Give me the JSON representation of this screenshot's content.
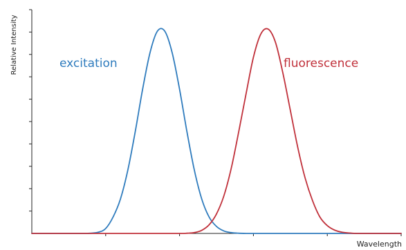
{
  "chart_data": {
    "type": "line",
    "title": "",
    "xlabel": "Wavelength",
    "ylabel": "Relative Intensity",
    "xlim": [
      0,
      100
    ],
    "ylim": [
      0,
      1.0
    ],
    "grid": false,
    "legend": "none",
    "series": [
      {
        "name": "excitation",
        "color": "#2e7bbd",
        "x": [
          0,
          10,
          15,
          18,
          20,
          22,
          24,
          26,
          28,
          30,
          32,
          34,
          36,
          38,
          40,
          42,
          44,
          46,
          48,
          50,
          52,
          54,
          56,
          58,
          60,
          62,
          64,
          66,
          68,
          70,
          75,
          80,
          90,
          100
        ],
        "values": [
          0.0,
          0.0,
          0.0,
          0.006,
          0.024,
          0.08,
          0.168,
          0.309,
          0.496,
          0.703,
          0.881,
          0.986,
          0.986,
          0.881,
          0.703,
          0.496,
          0.309,
          0.168,
          0.08,
          0.034,
          0.012,
          0.004,
          0.001,
          0.0,
          0.0,
          0.0,
          0.0,
          0.0,
          0.0,
          0.0,
          0.0,
          0.0,
          0.0,
          0.0
        ]
      },
      {
        "name": "fluorescence",
        "color": "#c0303a",
        "x": [
          0,
          10,
          20,
          30,
          40,
          42,
          44,
          46,
          48,
          50,
          52,
          54,
          56,
          58,
          60,
          62,
          64,
          66,
          68,
          70,
          72,
          74,
          76,
          78,
          80,
          82,
          84,
          86,
          88,
          90,
          95,
          100
        ],
        "values": [
          0.0,
          0.0,
          0.0,
          0.0,
          0.0,
          0.001,
          0.004,
          0.015,
          0.042,
          0.095,
          0.183,
          0.318,
          0.494,
          0.68,
          0.859,
          0.972,
          0.996,
          0.93,
          0.78,
          0.6,
          0.42,
          0.27,
          0.16,
          0.08,
          0.038,
          0.016,
          0.006,
          0.002,
          0.0,
          0.0,
          0.0,
          0.0
        ]
      }
    ],
    "annotations": [
      {
        "text": "excitation",
        "series": "excitation"
      },
      {
        "text": "fluorescence",
        "series": "fluorescence"
      }
    ]
  }
}
